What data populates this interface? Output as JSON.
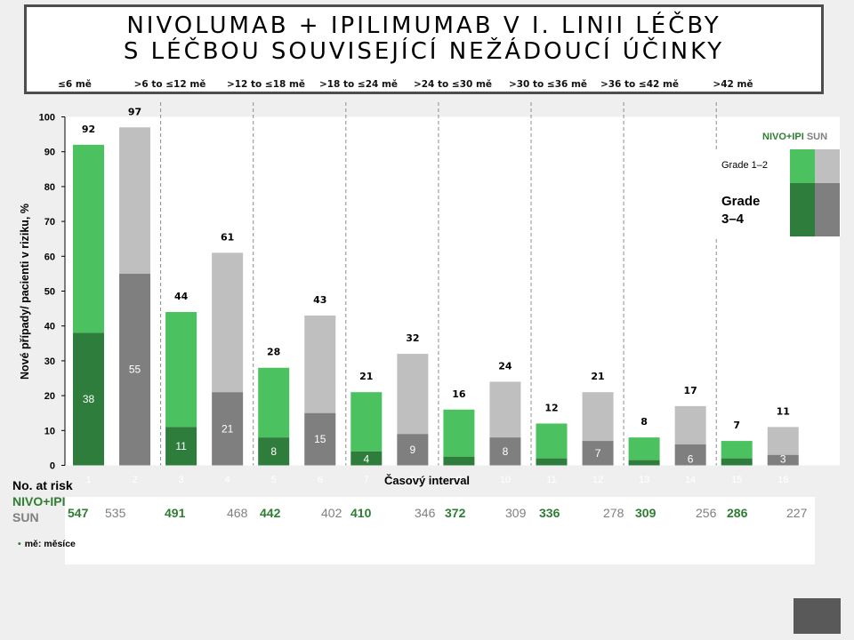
{
  "title": {
    "line1": "NIVOLUMAB + IPILIMUMAB V I. LINII LÉČBY",
    "line2": "S LÉČBOU SOUVISEJÍCÍ NEŽÁDOUCÍ ÚČINKY"
  },
  "intervals": [
    "≤6 mě",
    ">6 to ≤12 mě",
    ">12 to ≤18 mě",
    ">18 to ≤24 mě",
    ">24 to ≤30 mě",
    ">30 to ≤36 mě",
    ">36 to ≤42 mě",
    ">42 mě"
  ],
  "legend": {
    "nivo": "NIVO+IPI",
    "sun": "SUN",
    "grade12": "Grade 1–2",
    "grade34": "Grade 3–4"
  },
  "at_risk": {
    "title": "No. at risk",
    "nivo_label": "NIVO+IPI",
    "sun_label": "SUN",
    "nivo": [
      "547",
      "491",
      "442",
      "410",
      "372",
      "336",
      "309",
      "286"
    ],
    "sun": [
      "535",
      "468",
      "402",
      "346",
      "309",
      "278",
      "256",
      "227"
    ]
  },
  "footnote": "mě: měsíce",
  "colors": {
    "nivo_g12": "#4bc25f",
    "nivo_g34": "#2e7d3c",
    "sun_g12": "#bfbfbf",
    "sun_g34": "#7f7f7f"
  },
  "chart_data": {
    "type": "bar",
    "stacked": true,
    "ylabel": "Nové případy/ pacienti v riziku, %",
    "xlabel": "Časový interval",
    "ylim": [
      0,
      100
    ],
    "yticks": [
      0,
      10,
      20,
      30,
      40,
      50,
      60,
      70,
      80,
      90,
      100
    ],
    "categories": [
      "1",
      "2",
      "3",
      "4",
      "5",
      "6",
      "7",
      "8",
      "9",
      "10",
      "11",
      "12",
      "13",
      "14",
      "15",
      "16"
    ],
    "group": [
      "NIVO+IPI",
      "SUN",
      "NIVO+IPI",
      "SUN",
      "NIVO+IPI",
      "SUN",
      "NIVO+IPI",
      "SUN",
      "NIVO+IPI",
      "SUN",
      "NIVO+IPI",
      "SUN",
      "NIVO+IPI",
      "SUN",
      "NIVO+IPI",
      "SUN"
    ],
    "totals": [
      92,
      97,
      44,
      61,
      28,
      43,
      21,
      32,
      16,
      24,
      12,
      21,
      8,
      17,
      7,
      11
    ],
    "grade34": [
      38,
      55,
      11,
      21,
      8,
      15,
      4,
      9,
      2.5,
      8,
      2,
      7,
      1.5,
      6,
      2,
      3
    ],
    "grade34_labels": [
      "38",
      "55",
      "11",
      "21",
      "8",
      "15",
      "4",
      "9",
      "",
      "8",
      "",
      "7",
      "",
      "6",
      "",
      "3"
    ]
  }
}
